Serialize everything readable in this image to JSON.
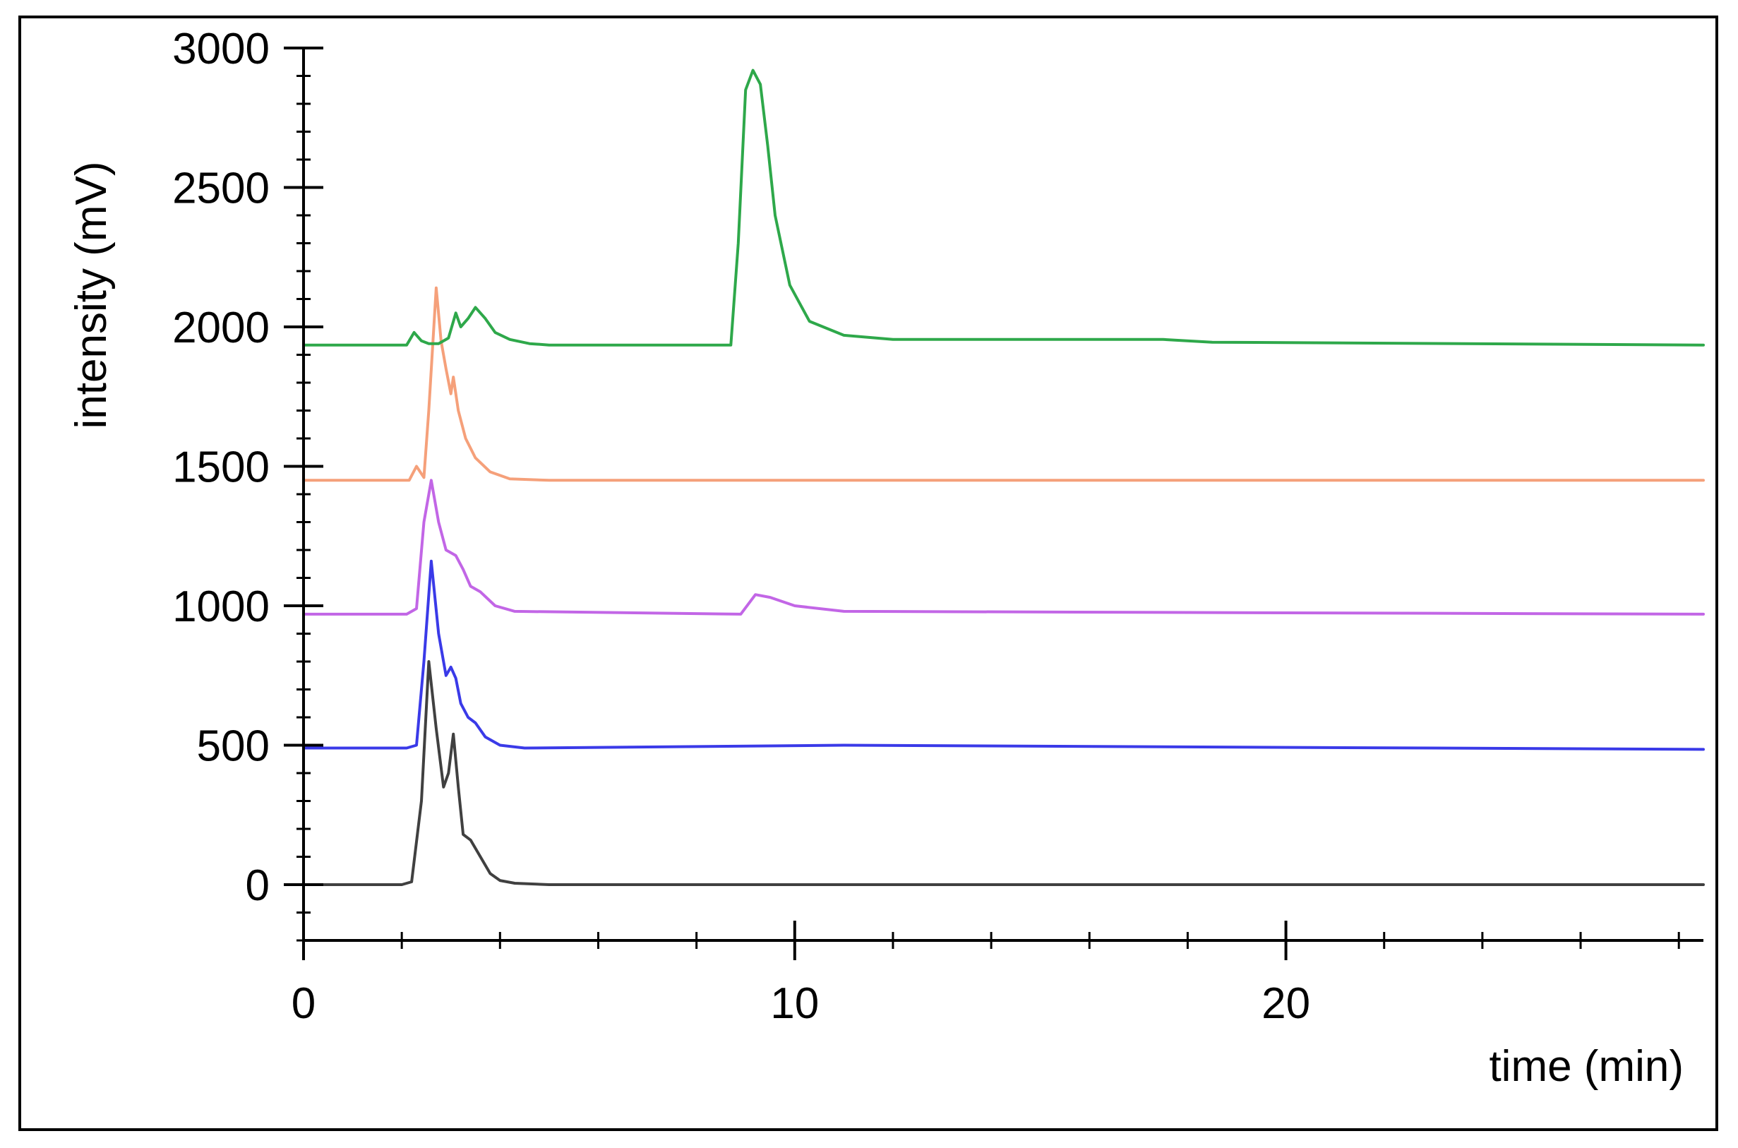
{
  "chart_data": {
    "type": "line",
    "xlabel": "time (min)",
    "ylabel": "intensity (mV)",
    "xlim": [
      0,
      28.5
    ],
    "ylim": [
      -200,
      3000
    ],
    "x_ticks": [
      0,
      10,
      20
    ],
    "y_ticks": [
      0,
      500,
      1000,
      1500,
      2000,
      2500,
      3000
    ],
    "legend": "none",
    "grid": false,
    "series": [
      {
        "color": "#404040",
        "x": [
          0,
          2.0,
          2.2,
          2.4,
          2.55,
          2.7,
          2.85,
          2.95,
          3.05,
          3.15,
          3.25,
          3.4,
          3.6,
          3.8,
          4.0,
          4.3,
          5.0,
          28.5
        ],
        "y": [
          0,
          0,
          10,
          300,
          800,
          560,
          350,
          400,
          540,
          350,
          180,
          160,
          100,
          40,
          15,
          5,
          0,
          0
        ]
      },
      {
        "color": "#3a3ae8",
        "x": [
          0,
          2.1,
          2.3,
          2.45,
          2.6,
          2.75,
          2.9,
          3.0,
          3.1,
          3.2,
          3.35,
          3.5,
          3.7,
          4.0,
          4.5,
          11,
          28.5
        ],
        "y": [
          490,
          490,
          500,
          800,
          1160,
          900,
          750,
          780,
          740,
          650,
          600,
          580,
          530,
          500,
          490,
          500,
          485
        ]
      },
      {
        "color": "#c266e6",
        "x": [
          0,
          2.1,
          2.3,
          2.45,
          2.6,
          2.75,
          2.9,
          3.0,
          3.1,
          3.25,
          3.4,
          3.6,
          3.9,
          4.3,
          8.9,
          9.2,
          9.5,
          10.0,
          11.0,
          28.5
        ],
        "y": [
          970,
          970,
          990,
          1300,
          1450,
          1300,
          1200,
          1190,
          1180,
          1130,
          1070,
          1050,
          1000,
          980,
          970,
          1040,
          1030,
          1000,
          980,
          970
        ]
      },
      {
        "color": "#f5a07a",
        "x": [
          0,
          2.15,
          2.3,
          2.45,
          2.55,
          2.7,
          2.8,
          2.9,
          3.0,
          3.05,
          3.15,
          3.3,
          3.5,
          3.8,
          4.2,
          5.0,
          28.5
        ],
        "y": [
          1450,
          1450,
          1500,
          1460,
          1700,
          2140,
          1950,
          1850,
          1760,
          1820,
          1700,
          1600,
          1530,
          1480,
          1455,
          1450,
          1450
        ]
      },
      {
        "color": "#2ea84a",
        "x": [
          0,
          2.1,
          2.25,
          2.4,
          2.55,
          2.75,
          2.95,
          3.1,
          3.2,
          3.35,
          3.5,
          3.7,
          3.9,
          4.2,
          4.6,
          5.0,
          8.7,
          8.85,
          9.0,
          9.15,
          9.3,
          9.45,
          9.6,
          9.9,
          10.3,
          11.0,
          12.0,
          17.5,
          18.5,
          28.5
        ],
        "y": [
          1935,
          1935,
          1980,
          1950,
          1940,
          1940,
          1960,
          2050,
          2000,
          2030,
          2070,
          2030,
          1980,
          1955,
          1940,
          1935,
          1935,
          2300,
          2850,
          2920,
          2870,
          2650,
          2400,
          2150,
          2020,
          1970,
          1955,
          1955,
          1945,
          1935
        ]
      }
    ]
  }
}
